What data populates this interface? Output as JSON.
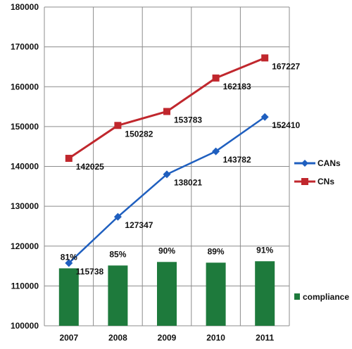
{
  "chart_data": {
    "type": "line",
    "x": [
      "2007",
      "2008",
      "2009",
      "2010",
      "2011"
    ],
    "ylim": [
      100000,
      180000
    ],
    "yticks": [
      100000,
      110000,
      120000,
      130000,
      140000,
      150000,
      160000,
      170000,
      180000
    ],
    "grid": true,
    "legend_position": "right",
    "series": [
      {
        "name": "CANs",
        "type": "line",
        "marker": "diamond",
        "color": "#1f5fbf",
        "values": [
          115738,
          127347,
          138021,
          143782,
          152410
        ],
        "labels": [
          "115738",
          "127347",
          "138021",
          "143782",
          "152410"
        ]
      },
      {
        "name": "CNs",
        "type": "line",
        "marker": "square",
        "color": "#c0272d",
        "values": [
          142025,
          150282,
          153783,
          162183,
          167227
        ],
        "labels": [
          "142025",
          "150282",
          "153783",
          "162183",
          "167227"
        ]
      },
      {
        "name": "compliance",
        "type": "bar",
        "color": "#1e7a3c",
        "percent_values": [
          81,
          85,
          90,
          89,
          91
        ],
        "labels": [
          "81%",
          "85%",
          "90%",
          "89%",
          "91%"
        ]
      }
    ]
  }
}
